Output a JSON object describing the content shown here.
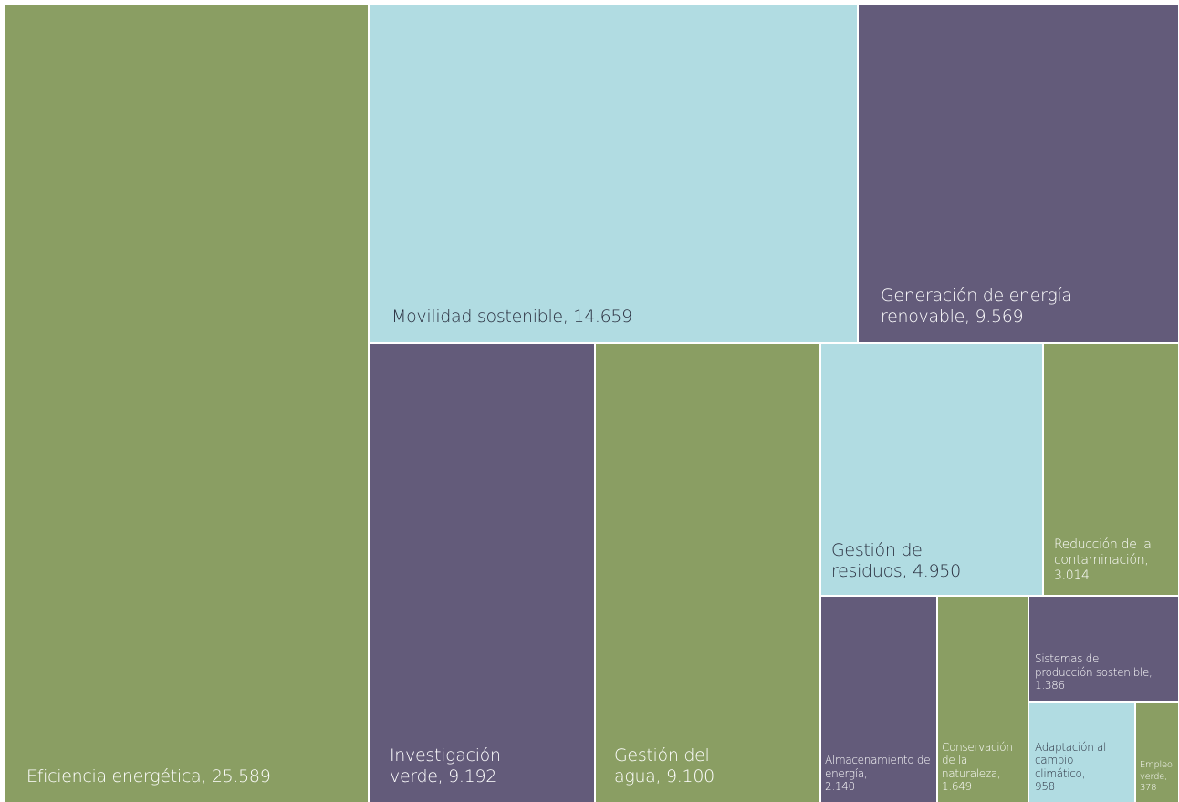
{
  "chart_data": {
    "type": "treemap",
    "title": "",
    "colors": {
      "green": "#8a9e63",
      "blue": "#b1dce2",
      "purple": "#635b7a",
      "text_dark": "#2a2f3f",
      "text_light": "#ffffff"
    },
    "items": [
      {
        "name": "Eficiencia energética",
        "value": 25589,
        "label_lines": [
          "Eficiencia energética, 25.589"
        ],
        "color": "#8a9e63",
        "text_color": "#ffffff"
      },
      {
        "name": "Movilidad sostenible",
        "value": 14659,
        "label_lines": [
          "Movilidad sostenible, 14.659"
        ],
        "color": "#b1dce2",
        "text_color": "#2a2f3f"
      },
      {
        "name": "Generación de energía renovable",
        "value": 9569,
        "label_lines": [
          "Generación de energía",
          "renovable, 9.569"
        ],
        "color": "#635b7a",
        "text_color": "#ffffff"
      },
      {
        "name": "Investigación verde",
        "value": 9192,
        "label_lines": [
          "Investigación",
          "verde, 9.192"
        ],
        "color": "#635b7a",
        "text_color": "#ffffff"
      },
      {
        "name": "Gestión del agua",
        "value": 9100,
        "label_lines": [
          "Gestión del",
          "agua, 9.100"
        ],
        "color": "#8a9e63",
        "text_color": "#ffffff"
      },
      {
        "name": "Gestión de residuos",
        "value": 4950,
        "label_lines": [
          "Gestión de",
          "residuos, 4.950"
        ],
        "color": "#b1dce2",
        "text_color": "#2a2f3f"
      },
      {
        "name": "Reducción de la contaminación",
        "value": 3014,
        "label_lines": [
          "Reducción de la",
          "contaminación,",
          "3.014"
        ],
        "color": "#8a9e63",
        "text_color": "#ffffff"
      },
      {
        "name": "Almacenamiento de energía",
        "value": 2140,
        "label_lines": [
          "Almacenamiento de",
          "energía,",
          "2.140"
        ],
        "color": "#635b7a",
        "text_color": "#ffffff"
      },
      {
        "name": "Conservación de la naturaleza",
        "value": 1649,
        "label_lines": [
          "Conservación",
          "de la",
          "naturaleza,",
          "1.649"
        ],
        "color": "#8a9e63",
        "text_color": "#ffffff"
      },
      {
        "name": "Sistemas de producción sostenible",
        "value": 1386,
        "label_lines": [
          "Sistemas de",
          "producción sostenible,",
          "1.386"
        ],
        "color": "#635b7a",
        "text_color": "#ffffff"
      },
      {
        "name": "Adaptación al cambio climático",
        "value": 958,
        "label_lines": [
          "Adaptación al",
          "cambio",
          "climático,",
          "958"
        ],
        "color": "#b1dce2",
        "text_color": "#2a2f3f"
      },
      {
        "name": "Empleo verde",
        "value": 378,
        "label_lines": [
          "Empleo",
          "verde,",
          "378"
        ],
        "color": "#8a9e63",
        "text_color": "#ffffff"
      }
    ]
  }
}
